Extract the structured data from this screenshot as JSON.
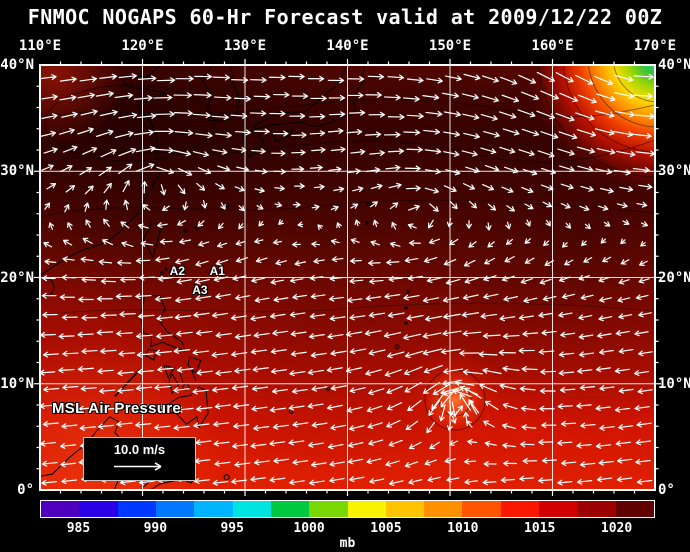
{
  "title": "FNMOC NOGAPS 60-Hr Forecast valid at 2009/12/22 00Z",
  "map": {
    "lon_labels": [
      "110°E",
      "120°E",
      "130°E",
      "140°E",
      "150°E",
      "160°E",
      "170°E"
    ],
    "lat_labels": [
      "40°N",
      "30°N",
      "20°N",
      "10°N",
      "0°"
    ],
    "annotations": [
      {
        "label": "A2",
        "lon": 123.4,
        "lat": 20.6
      },
      {
        "label": "A1",
        "lon": 127.3,
        "lat": 20.6
      },
      {
        "label": "A3",
        "lon": 125.6,
        "lat": 18.8
      }
    ],
    "field_label": "MSL Air Pressure",
    "wind_legend_label": "10.0 m/s"
  },
  "colorbar": {
    "unit": "mb",
    "min": 982.5,
    "max": 1022.5,
    "ticks": [
      985,
      990,
      995,
      1000,
      1005,
      1010,
      1015,
      1020
    ],
    "colors": [
      "#4e00be",
      "#2a00e6",
      "#0038ff",
      "#0078ff",
      "#00b4ff",
      "#00e4e0",
      "#00c840",
      "#78d800",
      "#f8f400",
      "#ffc400",
      "#ff9000",
      "#ff5400",
      "#f81800",
      "#d00000",
      "#9c0000",
      "#600000"
    ]
  },
  "chart_data": {
    "type": "heatmap",
    "title": "FNMOC NOGAPS 60-Hr Forecast valid at 2009/12/22 00Z",
    "field": "MSL Air Pressure",
    "unit": "mb",
    "x_ticks": [
      "110°E",
      "120°E",
      "130°E",
      "140°E",
      "150°E",
      "160°E",
      "170°E"
    ],
    "y_ticks": [
      "0°",
      "10°N",
      "20°N",
      "30°N",
      "40°N"
    ],
    "x_range": [
      110,
      170
    ],
    "y_range": [
      0,
      40
    ],
    "colorbar_ticks": [
      985,
      990,
      995,
      1000,
      1005,
      1010,
      1015,
      1020
    ],
    "colorbar_range": [
      982.5,
      1022.5
    ],
    "vector_legend": "10.0 m/s",
    "overlay": "wind vectors"
  }
}
